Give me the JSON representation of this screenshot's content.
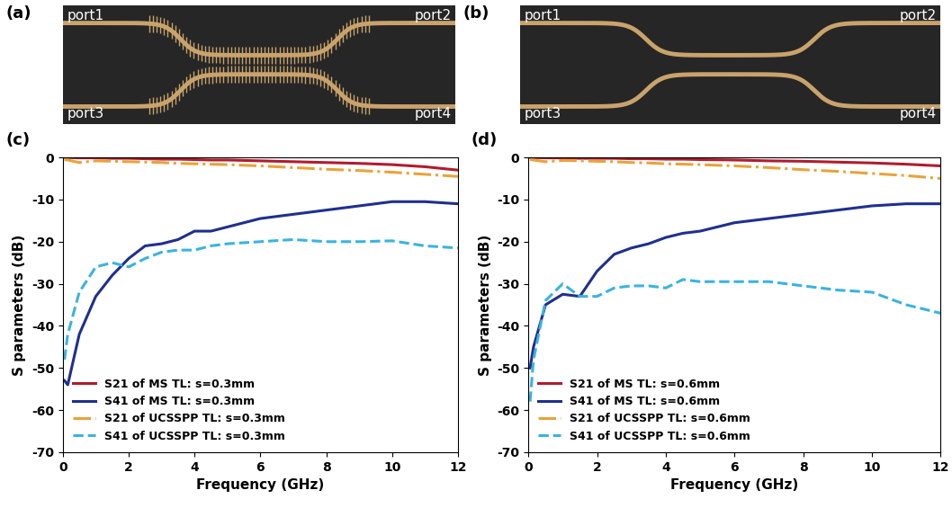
{
  "photos": [
    {
      "label": "(a)",
      "ports": [
        "port1",
        "port2",
        "port3",
        "port4"
      ]
    },
    {
      "label": "(b)",
      "ports": [
        "port1",
        "port2",
        "port3",
        "port4"
      ]
    }
  ],
  "chart_data": [
    {
      "type": "line",
      "label": "(c)",
      "xlabel": "Frequency (GHz)",
      "ylabel": "S parameters (dB)",
      "xlim": [
        0,
        12
      ],
      "ylim": [
        -70,
        0
      ],
      "xticks": [
        0,
        2,
        4,
        6,
        8,
        10,
        12
      ],
      "yticks": [
        -70,
        -60,
        -50,
        -40,
        -30,
        -20,
        -10,
        0
      ],
      "legend": "lower left",
      "x": [
        0.05,
        0.15,
        0.5,
        1,
        1.5,
        2,
        2.5,
        3,
        3.5,
        4,
        4.5,
        5,
        6,
        7,
        8,
        9,
        10,
        11,
        12
      ],
      "series": [
        {
          "name": "S21 of MS TL: s=0.3mm",
          "color": "#b01c2e",
          "line_style": "solid",
          "values": [
            0,
            0,
            -0.1,
            -0.1,
            -0.2,
            -0.2,
            -0.3,
            -0.4,
            -0.4,
            -0.5,
            -0.6,
            -0.6,
            -0.8,
            -1.0,
            -1.2,
            -1.4,
            -1.7,
            -2.2,
            -3.0
          ]
        },
        {
          "name": "S41 of MS TL: s=0.3mm",
          "color": "#1f2f8f",
          "line_style": "solid",
          "values": [
            -53,
            -54,
            -42,
            -33,
            -28,
            -24,
            -21,
            -20.5,
            -19.5,
            -17.5,
            -17.5,
            -16.5,
            -14.5,
            -13.5,
            -12.5,
            -11.5,
            -10.5,
            -10.5,
            -11
          ]
        },
        {
          "name": "S21 of UCSSPP TL: s=0.3mm",
          "color": "#e8a33a",
          "line_style": "dashdot",
          "values": [
            -0.5,
            -0.6,
            -1.2,
            -0.8,
            -0.9,
            -1.0,
            -1.1,
            -1.2,
            -1.4,
            -1.5,
            -1.6,
            -1.7,
            -2.0,
            -2.4,
            -2.8,
            -3.1,
            -3.5,
            -4.0,
            -4.5
          ]
        },
        {
          "name": "S41 of UCSSPP TL: s=0.3mm",
          "color": "#3bb3e0",
          "line_style": "dashed",
          "values": [
            -48,
            -42,
            -32,
            -26,
            -25,
            -26,
            -24,
            -22.5,
            -22,
            -22,
            -21,
            -20.5,
            -20,
            -19.5,
            -20,
            -20,
            -19.8,
            -21,
            -21.5
          ]
        }
      ]
    },
    {
      "type": "line",
      "label": "(d)",
      "xlabel": "Frequency (GHz)",
      "ylabel": "S parameters (dB)",
      "xlim": [
        0,
        12
      ],
      "ylim": [
        -70,
        0
      ],
      "xticks": [
        0,
        2,
        4,
        6,
        8,
        10,
        12
      ],
      "yticks": [
        -70,
        -60,
        -50,
        -40,
        -30,
        -20,
        -10,
        0
      ],
      "legend": "lower left",
      "x": [
        0.05,
        0.15,
        0.5,
        1,
        1.5,
        2,
        2.5,
        3,
        3.5,
        4,
        4.5,
        5,
        6,
        7,
        8,
        9,
        10,
        11,
        12
      ],
      "series": [
        {
          "name": "S21 of MS TL: s=0.6mm",
          "color": "#b01c2e",
          "line_style": "solid",
          "values": [
            0,
            0,
            -0.1,
            -0.1,
            -0.2,
            -0.2,
            -0.2,
            -0.3,
            -0.3,
            -0.4,
            -0.4,
            -0.5,
            -0.6,
            -0.8,
            -0.9,
            -1.1,
            -1.3,
            -1.6,
            -2.0
          ]
        },
        {
          "name": "S41 of MS TL: s=0.6mm",
          "color": "#1f2f8f",
          "line_style": "solid",
          "values": [
            -50,
            -45,
            -35,
            -32.5,
            -33,
            -27,
            -23,
            -21.5,
            -20.5,
            -19,
            -18,
            -17.5,
            -15.5,
            -14.5,
            -13.5,
            -12.5,
            -11.5,
            -11,
            -11
          ]
        },
        {
          "name": "S21 of UCSSPP TL: s=0.6mm",
          "color": "#e8a33a",
          "line_style": "dashdot",
          "values": [
            -0.5,
            -0.6,
            -1.0,
            -0.7,
            -0.8,
            -0.9,
            -1.0,
            -1.2,
            -1.3,
            -1.5,
            -1.6,
            -1.7,
            -2.0,
            -2.4,
            -2.9,
            -3.3,
            -3.8,
            -4.3,
            -5.0
          ]
        },
        {
          "name": "S41 of UCSSPP TL: s=0.6mm",
          "color": "#3bb3e0",
          "line_style": "dashed",
          "values": [
            -58,
            -48,
            -34,
            -30,
            -33,
            -33,
            -31,
            -30.5,
            -30.5,
            -31,
            -29,
            -29.5,
            -29.5,
            -29.5,
            -30.5,
            -31.5,
            -32,
            -35,
            -37
          ]
        }
      ]
    }
  ]
}
